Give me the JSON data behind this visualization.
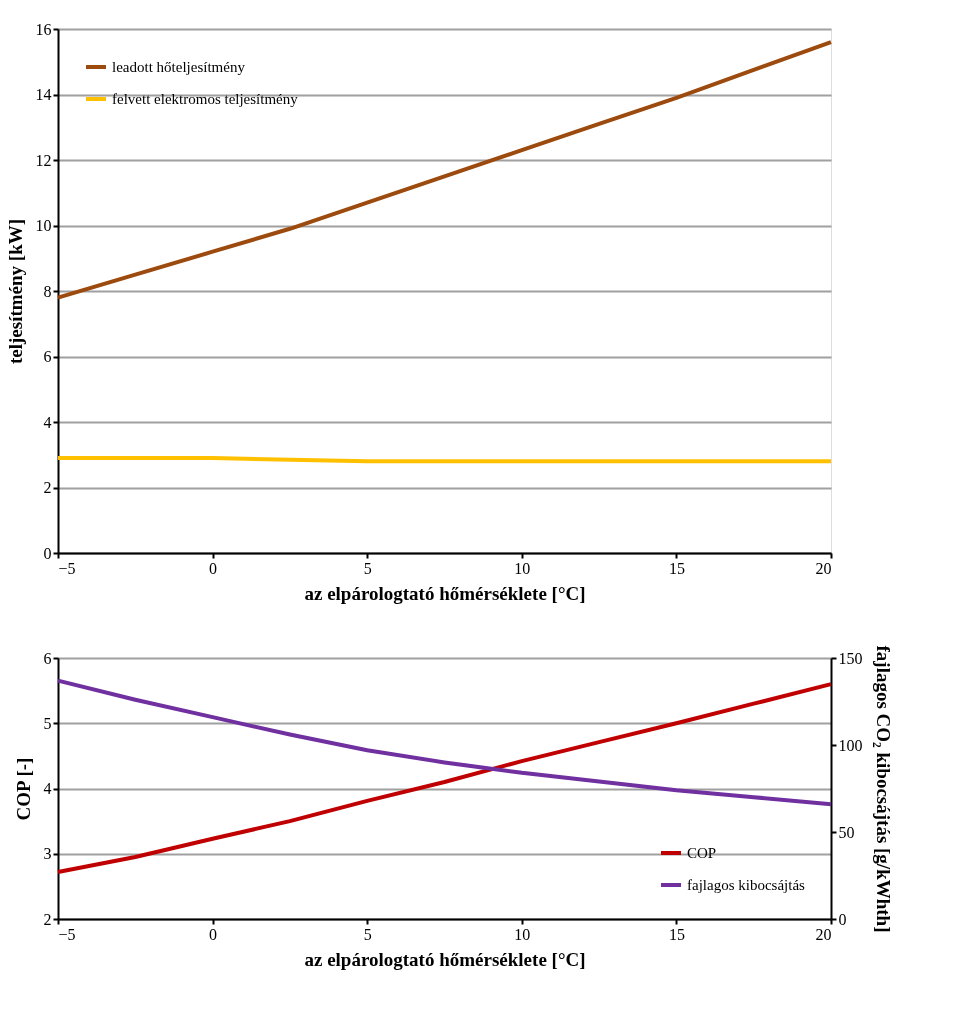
{
  "chart_data": [
    {
      "type": "line",
      "xlabel": "az elpárologtató hőmérséklete [°C]",
      "ylabel": "teljesítmény [kW]",
      "xlim": [
        -5,
        20
      ],
      "xticks": [
        -5,
        0,
        5,
        10,
        15,
        20
      ],
      "ylim": [
        0,
        16
      ],
      "yticks": [
        0,
        2,
        4,
        6,
        8,
        10,
        12,
        14,
        16
      ],
      "grid": "y",
      "legend": "top left",
      "marker": "none",
      "line_style": "solid",
      "x": [
        -5,
        -2.5,
        0,
        2.5,
        5,
        7.5,
        10,
        12.5,
        15,
        17.5,
        20
      ],
      "series": [
        {
          "name": "leadott hőteljesítmény",
          "color": "#9c4a0e",
          "values": [
            7.8,
            8.5,
            9.2,
            9.9,
            10.7,
            11.5,
            12.3,
            13.1,
            13.9,
            14.75,
            15.6
          ]
        },
        {
          "name": "felvett elektromos teljesítmény",
          "color": "#ffc000",
          "values": [
            2.9,
            2.9,
            2.9,
            2.85,
            2.8,
            2.8,
            2.8,
            2.8,
            2.8,
            2.8,
            2.8
          ]
        }
      ]
    },
    {
      "type": "line",
      "xlabel": "az elpárologtató hőmérséklete [°C]",
      "ylabel": "COP [-]",
      "y2label": "fajlagos CO₂ kibocsájtás [g/kWhth]",
      "xlim": [
        -5,
        20
      ],
      "xticks": [
        -5,
        0,
        5,
        10,
        15,
        20
      ],
      "ylim": [
        2,
        6
      ],
      "yticks": [
        2,
        3,
        4,
        5,
        6
      ],
      "y2lim": [
        0,
        150
      ],
      "y2ticks": [
        0,
        50,
        100,
        150
      ],
      "grid": "y",
      "legend": "bottom right",
      "marker": "none",
      "line_style": "solid",
      "x": [
        -5,
        -2.5,
        0,
        2.5,
        5,
        7.5,
        10,
        12.5,
        15,
        17.5,
        20
      ],
      "series": [
        {
          "name": "COP",
          "color": "#c00000",
          "values": [
            2.72,
            2.95,
            3.23,
            3.5,
            3.81,
            4.1,
            4.42,
            4.71,
            5.0,
            5.3,
            5.6
          ]
        },
        {
          "name": "fajlagos kibocsájtás",
          "color": "#7030a0",
          "axis": "y2",
          "values": [
            137,
            126,
            116,
            106,
            97,
            90,
            84,
            79,
            74,
            70,
            66
          ]
        }
      ]
    }
  ]
}
